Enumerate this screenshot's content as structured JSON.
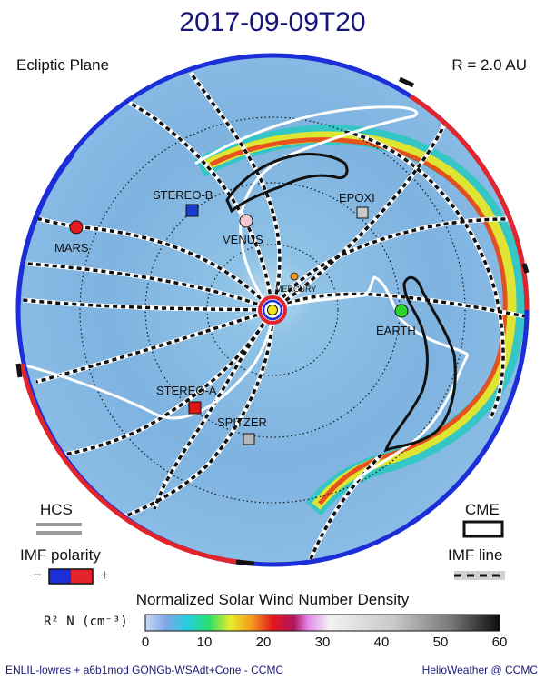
{
  "title": "2017-09-09T20",
  "plane_label": "Ecliptic Plane",
  "radius_label": "R = 2.0 AU",
  "bodies": [
    {
      "name": "STEREO-B",
      "shape": "square",
      "color": "#1a3ccc"
    },
    {
      "name": "EPOXI",
      "shape": "square",
      "color": "#c8c8c8"
    },
    {
      "name": "MARS",
      "shape": "circle",
      "color": "#e11b1b"
    },
    {
      "name": "VENUS",
      "shape": "circle",
      "color": "#f3c4d2"
    },
    {
      "name": "MERCURY",
      "shape": "circle",
      "color": "#f29a1e"
    },
    {
      "name": "EARTH",
      "shape": "circle",
      "color": "#2bd32b"
    },
    {
      "name": "STEREO-A",
      "shape": "square",
      "color": "#e01515"
    },
    {
      "name": "SPITZER",
      "shape": "square",
      "color": "#b8b8b8"
    }
  ],
  "legend": {
    "hcs": "HCS",
    "cme": "CME",
    "imf_polarity": "IMF polarity",
    "minus": "−",
    "plus": "+",
    "imf_line": "IMF line"
  },
  "colorbar": {
    "title": "Normalized Solar Wind Number Density",
    "unit_label": "R² N (cm⁻³)",
    "ticks": [
      "0",
      "10",
      "20",
      "30",
      "40",
      "50",
      "60"
    ],
    "range": [
      0,
      60
    ]
  },
  "footer": {
    "left": "ENLIL-lowres + a6b1mod GONGb-WSAdt+Cone - CCMC",
    "right": "HelioWeather @ CCMC"
  }
}
